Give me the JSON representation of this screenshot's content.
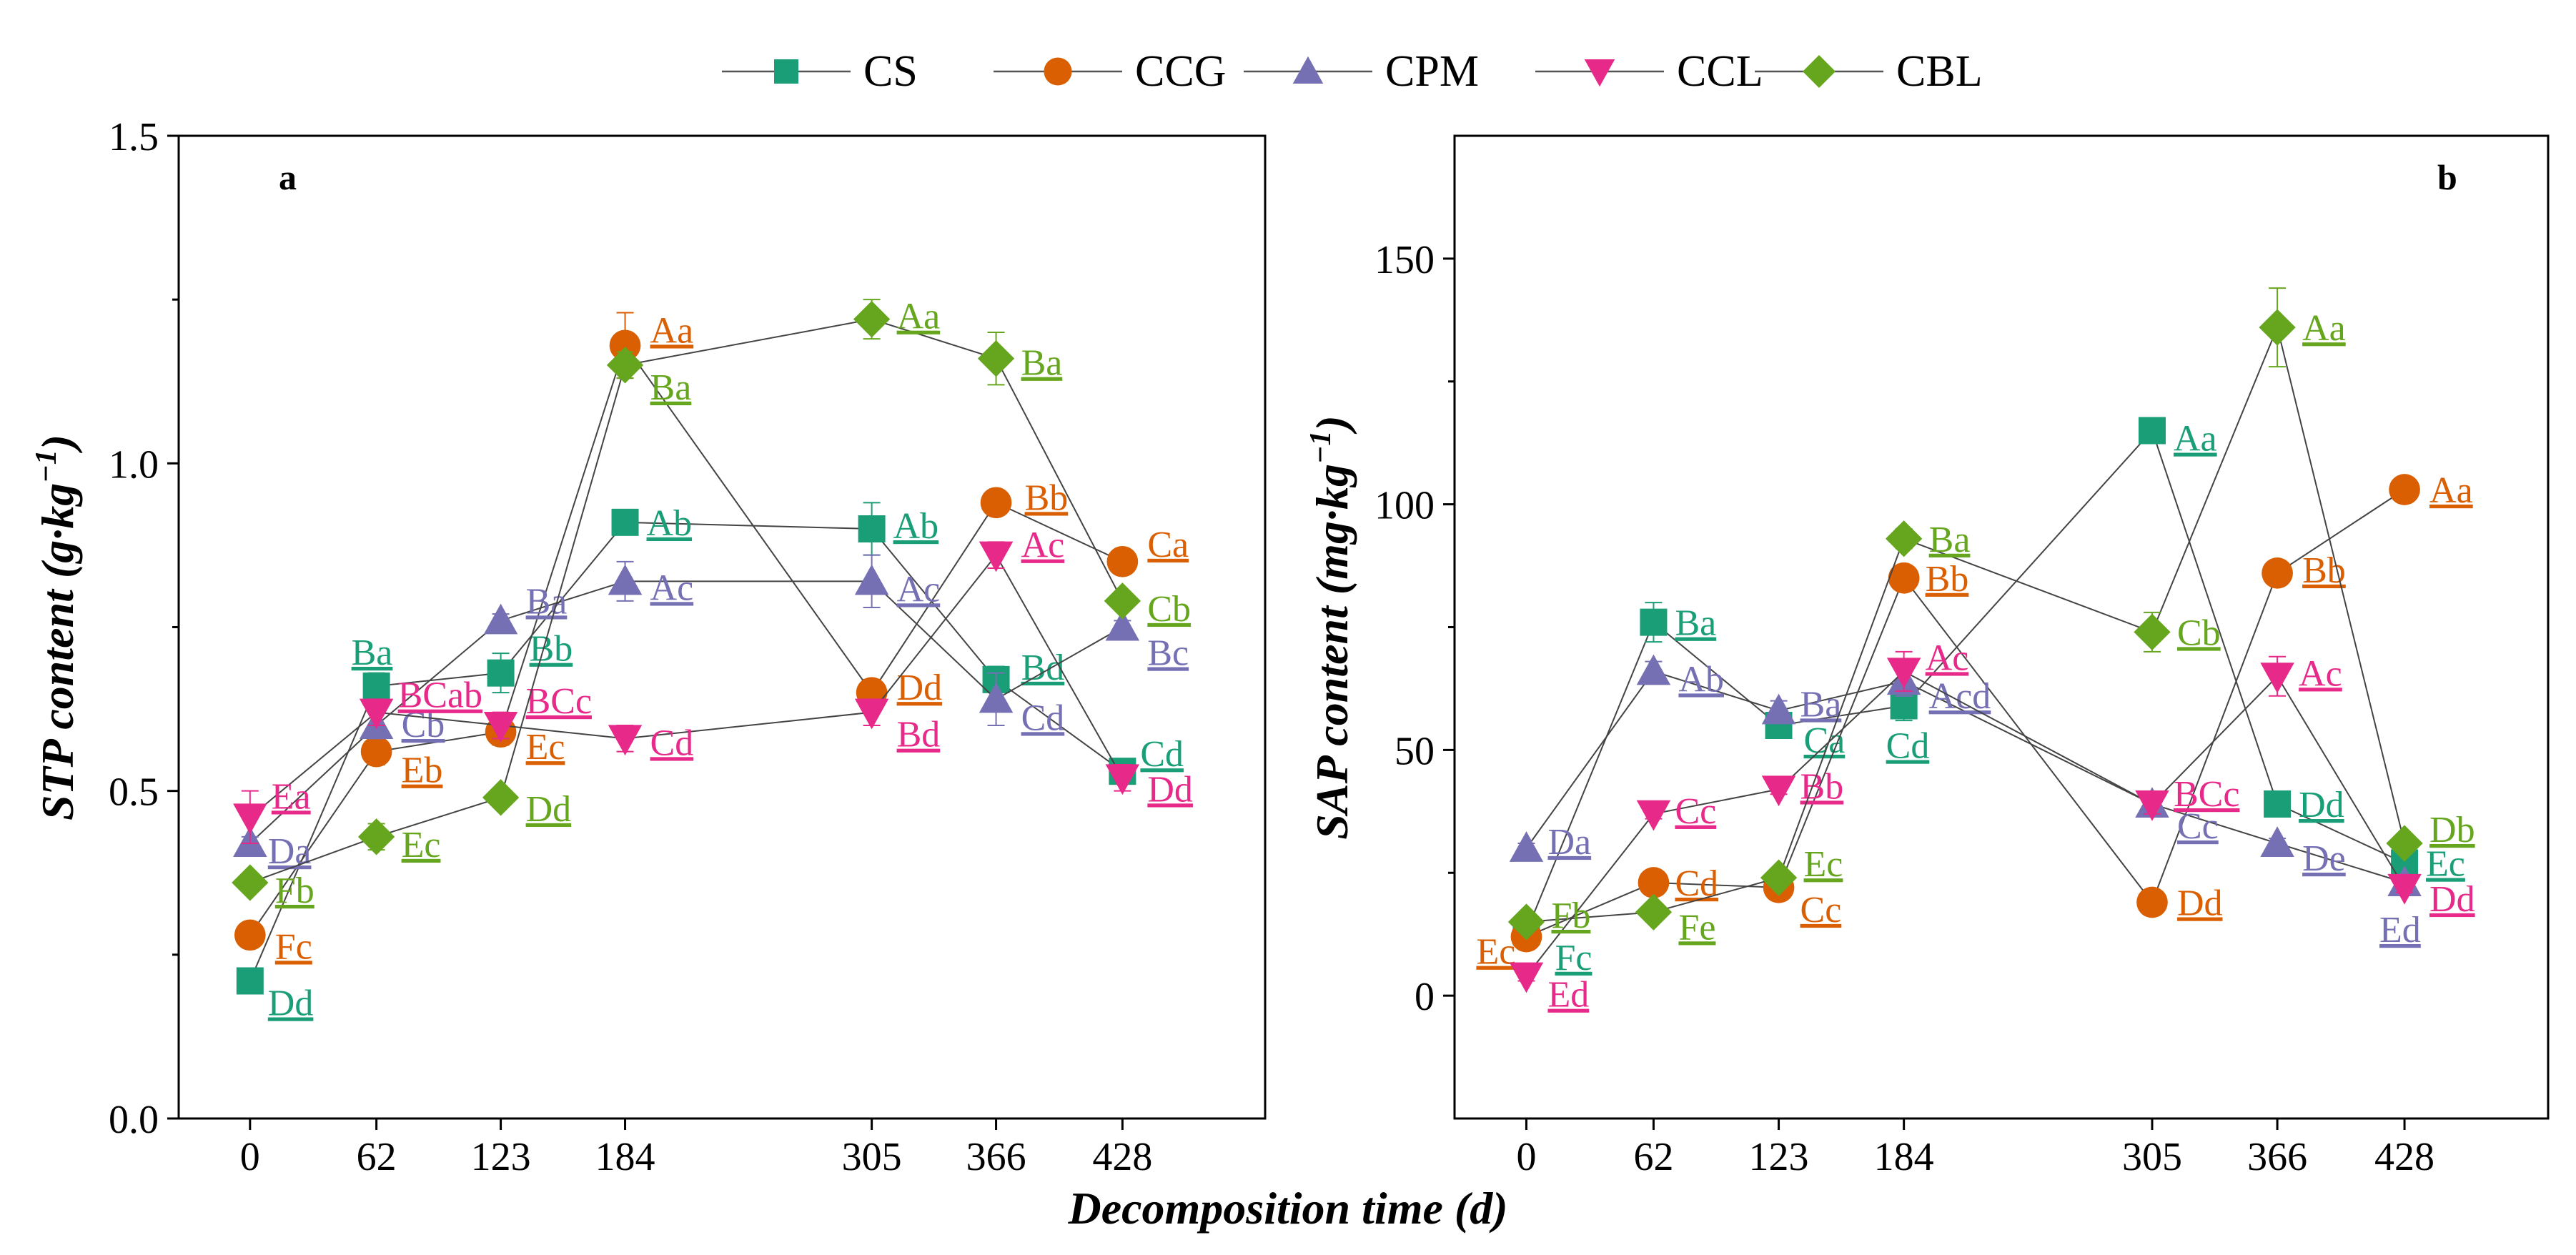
{
  "legend": {
    "entries": [
      {
        "name": "CS",
        "color": "#1a9e77",
        "marker": "square"
      },
      {
        "name": "CCG",
        "color": "#d95f02",
        "marker": "circle"
      },
      {
        "name": "CPM",
        "color": "#7570b3",
        "marker": "triangle-up"
      },
      {
        "name": "CCL",
        "color": "#e7298a",
        "marker": "triangle-down"
      },
      {
        "name": "CBL",
        "color": "#66a61e",
        "marker": "diamond"
      }
    ]
  },
  "xlabel": "Decomposition time (d)",
  "chart_data": [
    {
      "type": "line",
      "panel_label": "a",
      "ylabel_main": "STP content (g·kg",
      "ylabel_sup": "−1",
      "ylabel_close": ")",
      "x": [
        0,
        62,
        123,
        184,
        305,
        366,
        428
      ],
      "xticks": [
        "0",
        "62",
        "123",
        "184",
        "305",
        "366",
        "428"
      ],
      "ylim": [
        0,
        1.5
      ],
      "yticks": [
        0.0,
        0.5,
        1.0,
        1.5
      ],
      "ytick_labels": [
        "0.0",
        "0.5",
        "1.0",
        "1.5"
      ],
      "series": [
        {
          "name": "CS",
          "values": [
            0.21,
            0.66,
            0.68,
            0.91,
            0.9,
            0.67,
            0.53
          ],
          "errors": [
            0.01,
            0.02,
            0.03,
            0.01,
            0.04,
            0.02,
            0.01
          ],
          "labels": [
            "Dd",
            "Ba",
            "Bb",
            "Ab",
            "Ab",
            "Bd",
            "Cd"
          ]
        },
        {
          "name": "CCG",
          "values": [
            0.28,
            0.56,
            0.59,
            1.18,
            0.65,
            0.94,
            0.85
          ],
          "errors": [
            0.01,
            0.02,
            0.02,
            0.05,
            0.02,
            0.01,
            0.01
          ],
          "labels": [
            "Fc",
            "Eb",
            "Ec",
            "Aa",
            "Dd",
            "Bb",
            "Ca"
          ]
        },
        {
          "name": "CPM",
          "values": [
            0.42,
            0.6,
            0.76,
            0.82,
            0.82,
            0.64,
            0.75
          ],
          "errors": [
            0.01,
            0.02,
            0.01,
            0.03,
            0.04,
            0.04,
            0.01
          ],
          "labels": [
            "Da",
            "Cb",
            "Ba",
            "Ac",
            "Ac",
            "Cd",
            "Bc"
          ]
        },
        {
          "name": "CCL",
          "values": [
            0.46,
            0.62,
            0.6,
            0.58,
            0.62,
            0.86,
            0.52
          ],
          "errors": [
            0.04,
            0.02,
            0.02,
            0.02,
            0.02,
            0.02,
            0.02
          ],
          "labels": [
            "Ea",
            "BCab",
            "BCc",
            "Cd",
            "Bd",
            "Ac",
            "Dd"
          ]
        },
        {
          "name": "CBL",
          "values": [
            0.36,
            0.43,
            0.49,
            1.15,
            1.22,
            1.16,
            0.79
          ],
          "errors": [
            0.01,
            0.02,
            0.01,
            0.02,
            0.03,
            0.04,
            0.01
          ],
          "labels": [
            "Fb",
            "Ec",
            "Dd",
            "Ba",
            "Aa",
            "Ba",
            "Cb"
          ]
        }
      ]
    },
    {
      "type": "line",
      "panel_label": "b",
      "ylabel_main": "SAP content (mg·kg",
      "ylabel_sup": "−1",
      "ylabel_close": ")",
      "x": [
        0,
        62,
        123,
        184,
        305,
        366,
        428
      ],
      "xticks": [
        "0",
        "62",
        "123",
        "184",
        "305",
        "366",
        "428"
      ],
      "ylim": [
        -25,
        175
      ],
      "yticks": [
        0,
        50,
        100,
        150
      ],
      "ytick_labels": [
        "0",
        "50",
        "100",
        "150"
      ],
      "series": [
        {
          "name": "CS",
          "values": [
            13,
            76,
            55,
            59,
            115,
            39,
            27
          ],
          "errors": [
            1,
            4,
            2,
            3,
            1,
            2,
            1
          ],
          "labels": [
            "Fc",
            "Ba",
            "Ca",
            "Cd",
            "Aa",
            "Dd",
            "Ec"
          ]
        },
        {
          "name": "CCG",
          "values": [
            12,
            23,
            22,
            85,
            19,
            86,
            103
          ],
          "errors": [
            1,
            1,
            1,
            2,
            1,
            2,
            1
          ],
          "labels": [
            "Ec",
            "Cd",
            "Cc",
            "Bb",
            "Dd",
            "Bb",
            "Aa"
          ]
        },
        {
          "name": "CPM",
          "values": [
            30,
            66,
            58,
            64,
            39,
            31,
            23
          ],
          "errors": [
            1,
            2,
            2,
            3,
            2,
            1,
            1
          ],
          "labels": [
            "Da",
            "Ab",
            "Ba",
            "Acd",
            "Cc",
            "De",
            "Ed"
          ]
        },
        {
          "name": "CCL",
          "values": [
            4,
            37,
            42,
            66,
            39,
            65,
            22
          ],
          "errors": [
            1,
            1,
            1,
            4,
            2,
            4,
            1
          ],
          "labels": [
            "Ed",
            "Cc",
            "Bb",
            "Ac",
            "BCc",
            "Ac",
            "Dd"
          ]
        },
        {
          "name": "CBL",
          "values": [
            15,
            17,
            24,
            93,
            74,
            136,
            31
          ],
          "errors": [
            1,
            1,
            1,
            2,
            4,
            8,
            1
          ],
          "labels": [
            "Fb",
            "Fe",
            "Ec",
            "Ba",
            "Cb",
            "Aa",
            "Db"
          ]
        }
      ]
    }
  ]
}
